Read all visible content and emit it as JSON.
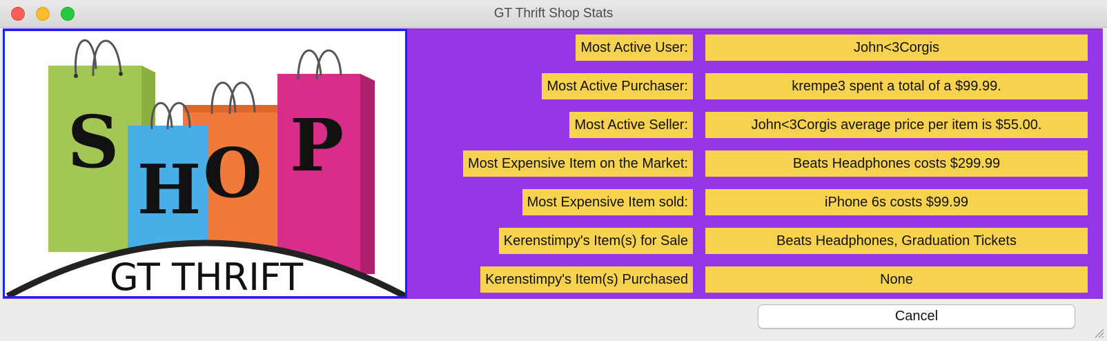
{
  "window": {
    "title": "GT Thrift Shop Stats"
  },
  "logo": {
    "letters": [
      "S",
      "H",
      "O",
      "P"
    ],
    "caption": "GT THRIFT",
    "colors": {
      "green": "#a3c754",
      "blue": "#48aee8",
      "orange": "#f07a3a",
      "pink": "#d92d8a",
      "border": "#1a22f5"
    }
  },
  "stats": [
    {
      "label": "Most Active User:",
      "value": "John<3Corgis"
    },
    {
      "label": "Most Active Purchaser:",
      "value": "krempe3 spent a total of a $99.99."
    },
    {
      "label": "Most Active Seller:",
      "value": "John<3Corgis average price per item is $55.00."
    },
    {
      "label": "Most Expensive Item on the Market:",
      "value": "Beats Headphones costs $299.99"
    },
    {
      "label": "Most Expensive Item sold:",
      "value": "iPhone 6s costs $99.99"
    },
    {
      "label": "Kerenstimpy's Item(s) for Sale",
      "value": "Beats Headphones, Graduation Tickets"
    },
    {
      "label": "Kerenstimpy's Item(s) Purchased",
      "value": "None"
    }
  ],
  "buttons": {
    "cancel": "Cancel"
  },
  "colors": {
    "panel_bg": "#9537e6",
    "field_bg": "#f6d24f"
  }
}
